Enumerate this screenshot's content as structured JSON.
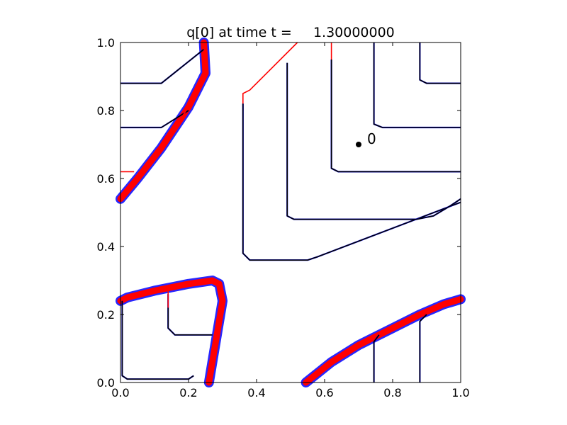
{
  "chart_data": {
    "type": "line",
    "title": "q[0] at time t =     1.30000000",
    "xlabel": "",
    "ylabel": "",
    "xlim": [
      0.0,
      1.0
    ],
    "ylim": [
      0.0,
      1.0
    ],
    "xticks": [
      "0.0",
      "0.2",
      "0.4",
      "0.6",
      "0.8",
      "1.0"
    ],
    "yticks": [
      "0.0",
      "0.2",
      "0.4",
      "0.6",
      "0.8",
      "1.0"
    ],
    "grid": false,
    "legend": "none",
    "colors": {
      "contour_fine": "#0000ff",
      "contour_coarse": "#ff0000",
      "contour_reference": "#000000",
      "marker": "#000000"
    },
    "annotation": {
      "text": "0",
      "x": 0.7,
      "y": 0.7
    },
    "series": [
      {
        "color": "#000000",
        "x": [
          0.0,
          0.12,
          0.245
        ],
        "y": [
          0.88,
          0.88,
          0.98
        ]
      },
      {
        "color": "#000000",
        "x": [
          0.0,
          0.12,
          0.2
        ],
        "y": [
          0.75,
          0.75,
          0.8
        ]
      },
      {
        "color": "#ff0000",
        "x": [
          0.0,
          0.05,
          0.12,
          0.2,
          0.25,
          0.245
        ],
        "y": [
          0.54,
          0.6,
          0.69,
          0.81,
          0.91,
          1.0
        ]
      },
      {
        "color": "#ff0000",
        "x": [
          0.0,
          0.04
        ],
        "y": [
          0.62,
          0.62
        ]
      },
      {
        "color": "#ff0000",
        "x": [
          0.36,
          0.36,
          0.38,
          0.52
        ],
        "y": [
          0.8,
          0.85,
          0.86,
          1.0
        ]
      },
      {
        "color": "#000000",
        "x": [
          0.36,
          0.36,
          0.38,
          0.55,
          0.58,
          1.0
        ],
        "y": [
          0.82,
          0.38,
          0.36,
          0.36,
          0.37,
          0.53
        ]
      },
      {
        "color": "#000000",
        "x": [
          0.49,
          0.49,
          0.51,
          0.87,
          0.92,
          0.97,
          1.0
        ],
        "y": [
          0.94,
          0.49,
          0.48,
          0.48,
          0.49,
          0.52,
          0.54
        ]
      },
      {
        "color": "#000000",
        "x": [
          0.62,
          0.62,
          0.64,
          1.0
        ],
        "y": [
          0.95,
          0.63,
          0.62,
          0.62
        ]
      },
      {
        "color": "#ff0000",
        "x": [
          0.62,
          0.62
        ],
        "y": [
          0.95,
          1.0
        ]
      },
      {
        "color": "#000000",
        "x": [
          0.745,
          0.745,
          0.77,
          1.0
        ],
        "y": [
          1.0,
          0.76,
          0.75,
          0.75
        ]
      },
      {
        "color": "#000000",
        "x": [
          0.88,
          0.88,
          0.9,
          1.0
        ],
        "y": [
          1.0,
          0.89,
          0.88,
          0.88
        ]
      },
      {
        "color": "#000000",
        "x": [
          0.005,
          0.005,
          0.02,
          0.2,
          0.215
        ],
        "y": [
          0.24,
          0.02,
          0.01,
          0.01,
          0.02
        ]
      },
      {
        "color": "#000000",
        "x": [
          0.14,
          0.14,
          0.16,
          0.27
        ],
        "y": [
          0.26,
          0.16,
          0.14,
          0.14
        ]
      },
      {
        "color": "#ff0000",
        "x": [
          0.14,
          0.14
        ],
        "y": [
          0.22,
          0.27
        ]
      },
      {
        "color": "#ff0000",
        "x": [
          0.0,
          0.02,
          0.1,
          0.2,
          0.27,
          0.29,
          0.3,
          0.28,
          0.26
        ],
        "y": [
          0.24,
          0.25,
          0.27,
          0.29,
          0.3,
          0.29,
          0.24,
          0.12,
          0.0
        ]
      },
      {
        "color": "#ff0000",
        "x": [
          0.545,
          0.62,
          0.7,
          0.8,
          0.88,
          0.95,
          1.0
        ],
        "y": [
          0.0,
          0.06,
          0.11,
          0.16,
          0.2,
          0.23,
          0.245
        ]
      },
      {
        "color": "#000000",
        "x": [
          0.745,
          0.745,
          0.76
        ],
        "y": [
          0.0,
          0.12,
          0.14
        ]
      },
      {
        "color": "#000000",
        "x": [
          0.88,
          0.88,
          0.9
        ],
        "y": [
          0.0,
          0.18,
          0.2
        ]
      }
    ]
  }
}
